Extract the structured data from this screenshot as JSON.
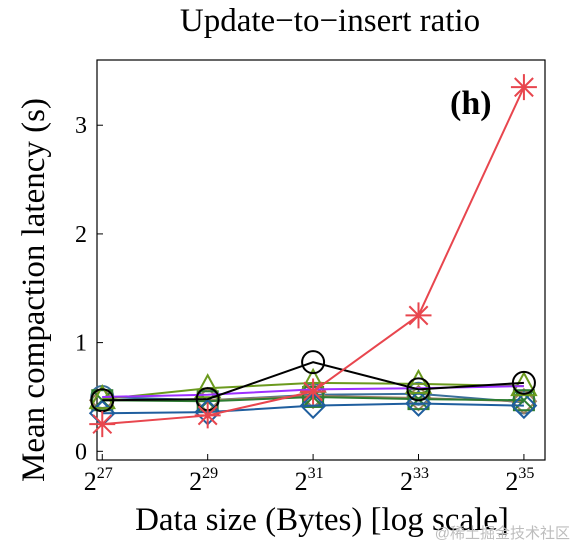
{
  "chart_data": {
    "type": "line",
    "title": "Update−to−insert ratio",
    "xlabel": "Data size (Bytes) [log scale]",
    "ylabel": "Mean compaction latency (s)",
    "annotation": "(h)",
    "x_scale": "log2",
    "x": [
      27,
      29,
      31,
      33,
      35
    ],
    "x_ticks": [
      {
        "base": "2",
        "exp": "27"
      },
      {
        "base": "2",
        "exp": "29"
      },
      {
        "base": "2",
        "exp": "31"
      },
      {
        "base": "2",
        "exp": "33"
      },
      {
        "base": "2",
        "exp": "35"
      }
    ],
    "xlim": [
      26.9,
      35.4
    ],
    "ylim": [
      -0.08,
      3.6
    ],
    "y_ticks": [
      0,
      1,
      2,
      3
    ],
    "grid": false,
    "series": [
      {
        "color": "#e8464e",
        "marker": "asterisk",
        "values": [
          0.25,
          0.33,
          0.55,
          1.25,
          3.35
        ]
      },
      {
        "color": "#000000",
        "marker": "circle",
        "values": [
          0.47,
          0.48,
          0.82,
          0.57,
          0.63
        ]
      },
      {
        "color": "#9b30ff",
        "marker": "none",
        "values": [
          0.5,
          0.52,
          0.57,
          0.58,
          0.6
        ]
      },
      {
        "color": "#6b9a1e",
        "marker": "triangle",
        "values": [
          0.48,
          0.58,
          0.63,
          0.62,
          0.6
        ]
      },
      {
        "color": "#1f5e9e",
        "marker": "diamond",
        "values": [
          0.35,
          0.36,
          0.42,
          0.44,
          0.42
        ]
      },
      {
        "color": "#2e7d32",
        "marker": "square-x",
        "values": [
          0.47,
          0.46,
          0.5,
          0.48,
          0.47
        ]
      },
      {
        "color": "#a08060",
        "marker": "diamond",
        "values": [
          0.47,
          0.47,
          0.51,
          0.49,
          0.46
        ]
      },
      {
        "color": "#3a6f9a",
        "marker": "circle",
        "values": [
          0.5,
          0.47,
          0.52,
          0.53,
          0.45
        ]
      }
    ]
  },
  "watermark": "@稀土掘金技术社区"
}
